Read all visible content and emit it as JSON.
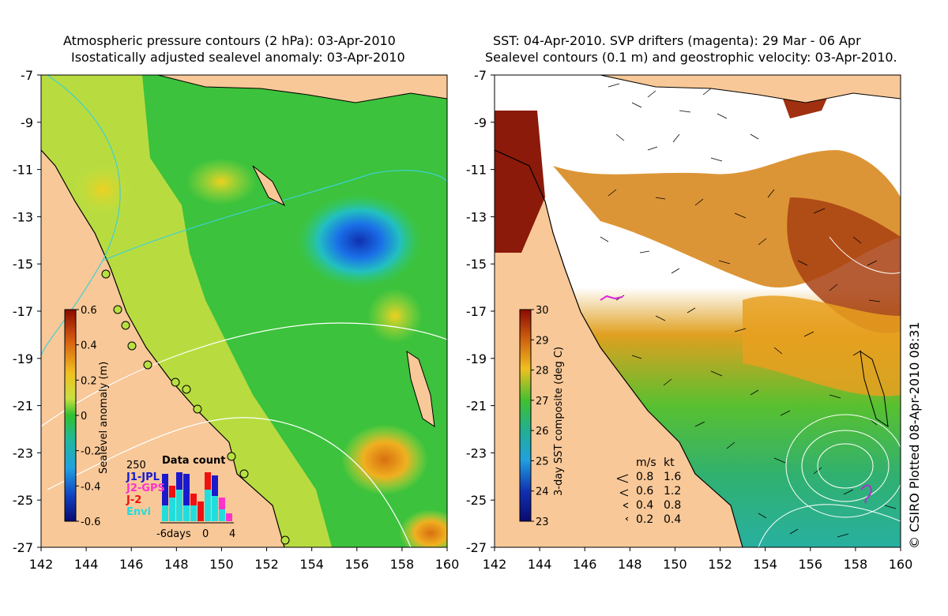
{
  "left_panel": {
    "title_line1": "Atmospheric pressure contours (2 hPa): 03-Apr-2010",
    "title_line2": "Isostatically adjusted sealevel anomaly: 03-Apr-2010",
    "x_ticks": [
      "142",
      "144",
      "146",
      "148",
      "150",
      "152",
      "154",
      "156",
      "158",
      "160"
    ],
    "y_ticks": [
      "-7",
      "-9",
      "-11",
      "-13",
      "-15",
      "-17",
      "-19",
      "-21",
      "-23",
      "-25",
      "-27"
    ],
    "colorbar": {
      "label": "Sealevel anomaly (m)",
      "ticks": [
        "0.6",
        "0.4",
        "0.2",
        "0",
        "-0.2",
        "-0.4",
        "-0.6"
      ],
      "range": [
        -0.6,
        0.6
      ]
    },
    "data_count": {
      "title": "Data count",
      "max_label": "250",
      "missions": [
        {
          "name": "J1-JPL",
          "color": "#1a1acc"
        },
        {
          "name": "J2-GPS",
          "color": "#ff33cc"
        },
        {
          "name": "J-2",
          "color": "#ee1111"
        },
        {
          "name": "Envi",
          "color": "#22dddd"
        }
      ],
      "axis_labels": [
        "-6days",
        "0",
        "4"
      ]
    }
  },
  "right_panel": {
    "title_line1": "SST: 04-Apr-2010. SVP drifters (magenta): 29 Mar - 06 Apr",
    "title_line2": "Sealevel contours (0.1 m) and geostrophic velocity: 03-Apr-2010.",
    "x_ticks": [
      "142",
      "144",
      "146",
      "148",
      "150",
      "152",
      "154",
      "156",
      "158",
      "160"
    ],
    "y_ticks": [
      "-7",
      "-9",
      "-11",
      "-13",
      "-15",
      "-17",
      "-19",
      "-21",
      "-23",
      "-25",
      "-27"
    ],
    "colorbar": {
      "label": "3-day SST composite (deg C)",
      "ticks": [
        "30",
        "29",
        "28",
        "27",
        "26",
        "25",
        "24",
        "23"
      ],
      "range": [
        23,
        30
      ]
    },
    "velocity_legend": {
      "header_ms": "m/s",
      "header_kt": "kt",
      "rows": [
        {
          "ms": "0.8",
          "kt": "1.6"
        },
        {
          "ms": "0.6",
          "kt": "1.2"
        },
        {
          "ms": "0.4",
          "kt": "0.8"
        },
        {
          "ms": "0.2",
          "kt": "0.4"
        }
      ]
    }
  },
  "credit": "© CSIRO Plotted 08-Apr-2010 08:31",
  "colors": {
    "land": "#f8c898",
    "ocean_green": "#44cc44",
    "low_anomaly": "#1a60e0",
    "warm_sst": "#a03010"
  }
}
